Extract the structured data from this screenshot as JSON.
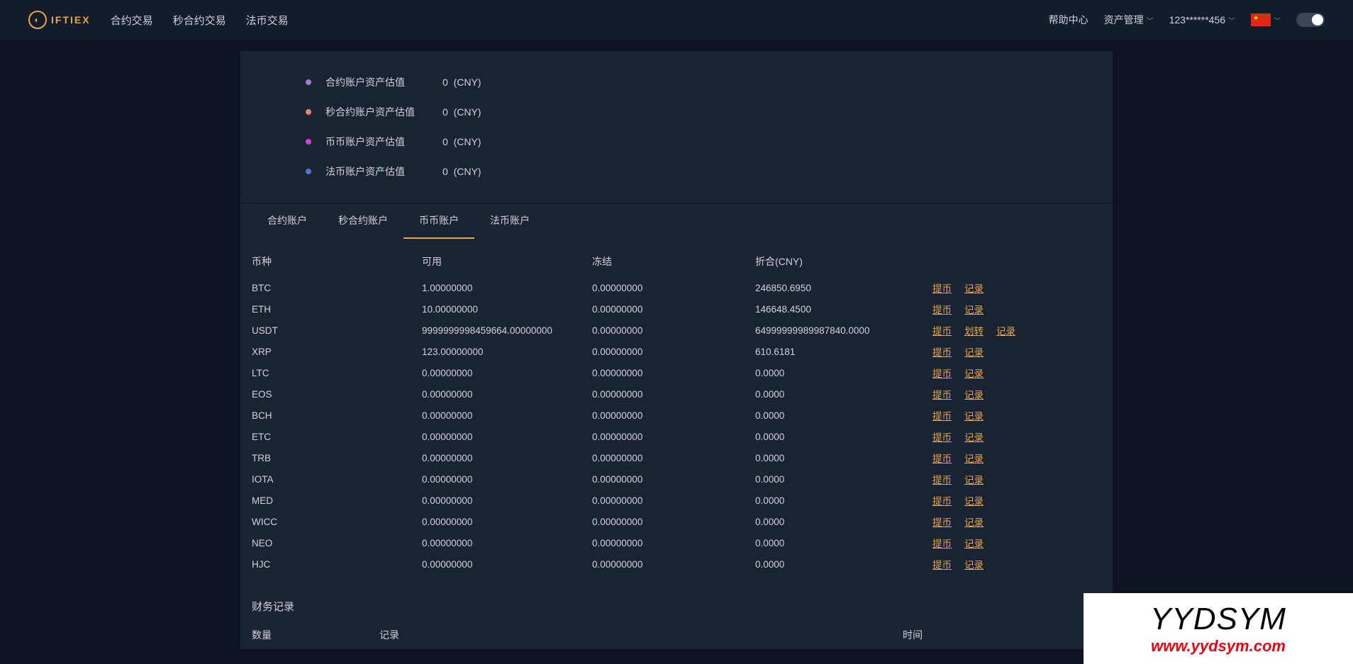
{
  "brand": "IFTIEX",
  "nav": {
    "contract": "合约交易",
    "seconds": "秒合约交易",
    "fiat": "法币交易"
  },
  "header": {
    "help": "帮助中心",
    "assets": "资产管理",
    "user": "123******456"
  },
  "summary": [
    {
      "color": "#9d7cd8",
      "label": "合约账户资产估值",
      "value": "0",
      "unit": "(CNY)"
    },
    {
      "color": "#e2876f",
      "label": "秒合约账户资产估值",
      "value": "0",
      "unit": "(CNY)"
    },
    {
      "color": "#d442d4",
      "label": "币币账户资产估值",
      "value": "0",
      "unit": "(CNY)"
    },
    {
      "color": "#4a7bd4",
      "label": "法币账户资产估值",
      "value": "0",
      "unit": "(CNY)"
    }
  ],
  "tabs": {
    "t1": "合约账户",
    "t2": "秒合约账户",
    "t3": "币币账户",
    "t4": "法币账户"
  },
  "cols": {
    "coin": "币种",
    "avail": "可用",
    "frozen": "冻结",
    "cny": "折合(CNY)"
  },
  "actions": {
    "withdraw": "提币",
    "transfer": "划转",
    "record": "记录"
  },
  "rows": [
    {
      "coin": "BTC",
      "avail": "1.00000000",
      "frozen": "0.00000000",
      "cny": "246850.6950",
      "acts": [
        "withdraw",
        "record"
      ]
    },
    {
      "coin": "ETH",
      "avail": "10.00000000",
      "frozen": "0.00000000",
      "cny": "146648.4500",
      "acts": [
        "withdraw",
        "record"
      ]
    },
    {
      "coin": "USDT",
      "avail": "9999999998459664.00000000",
      "frozen": "0.00000000",
      "cny": "64999999989987840.0000",
      "acts": [
        "withdraw",
        "transfer",
        "record"
      ]
    },
    {
      "coin": "XRP",
      "avail": "123.00000000",
      "frozen": "0.00000000",
      "cny": "610.6181",
      "acts": [
        "withdraw",
        "record"
      ]
    },
    {
      "coin": "LTC",
      "avail": "0.00000000",
      "frozen": "0.00000000",
      "cny": "0.0000",
      "acts": [
        "withdraw",
        "record"
      ]
    },
    {
      "coin": "EOS",
      "avail": "0.00000000",
      "frozen": "0.00000000",
      "cny": "0.0000",
      "acts": [
        "withdraw",
        "record"
      ]
    },
    {
      "coin": "BCH",
      "avail": "0.00000000",
      "frozen": "0.00000000",
      "cny": "0.0000",
      "acts": [
        "withdraw",
        "record"
      ]
    },
    {
      "coin": "ETC",
      "avail": "0.00000000",
      "frozen": "0.00000000",
      "cny": "0.0000",
      "acts": [
        "withdraw",
        "record"
      ]
    },
    {
      "coin": "TRB",
      "avail": "0.00000000",
      "frozen": "0.00000000",
      "cny": "0.0000",
      "acts": [
        "withdraw",
        "record"
      ]
    },
    {
      "coin": "IOTA",
      "avail": "0.00000000",
      "frozen": "0.00000000",
      "cny": "0.0000",
      "acts": [
        "withdraw",
        "record"
      ]
    },
    {
      "coin": "MED",
      "avail": "0.00000000",
      "frozen": "0.00000000",
      "cny": "0.0000",
      "acts": [
        "withdraw",
        "record"
      ]
    },
    {
      "coin": "WICC",
      "avail": "0.00000000",
      "frozen": "0.00000000",
      "cny": "0.0000",
      "acts": [
        "withdraw",
        "record"
      ]
    },
    {
      "coin": "NEO",
      "avail": "0.00000000",
      "frozen": "0.00000000",
      "cny": "0.0000",
      "acts": [
        "withdraw",
        "record"
      ]
    },
    {
      "coin": "HJC",
      "avail": "0.00000000",
      "frozen": "0.00000000",
      "cny": "0.0000",
      "acts": [
        "withdraw",
        "record"
      ]
    }
  ],
  "finance": {
    "title": "财务记录",
    "qty": "数量",
    "rec": "记录",
    "time": "时间"
  },
  "watermark": {
    "t1": "YYDSYM",
    "t2": "www.yydsym.com"
  }
}
